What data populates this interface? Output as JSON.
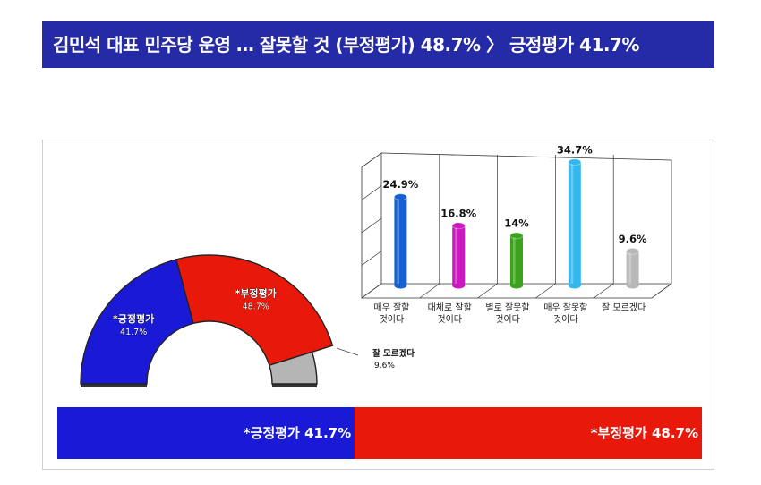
{
  "header": {
    "title": "김민석 대표 민주당 운영 … 잘못할 것 (부정평가) 48.7% 〉 긍정평가 41.7%"
  },
  "colors": {
    "banner": "#252aa6",
    "positive": "#1a1ad6",
    "negative": "#e8190b",
    "unknown": "#b5b5b5"
  },
  "chart_data": [
    {
      "type": "pie",
      "subtype": "semicircle-donut",
      "slices": [
        {
          "name": "*긍정평가",
          "value": 41.7,
          "label": "41.7%",
          "color": "#1a1ad6"
        },
        {
          "name": "*부정평가",
          "value": 48.7,
          "label": "48.7%",
          "color": "#e8190b"
        },
        {
          "name": "잘 모르겠다",
          "value": 9.6,
          "label": "9.6%",
          "color": "#b5b5b5"
        }
      ]
    },
    {
      "type": "bar",
      "subtype": "3d-cylinder",
      "categories": [
        "매우 잘할 것이다",
        "대체로 잘할 것이다",
        "별로 잘못할 것이다",
        "매우 잘못할 것이다",
        "잘 모르겠다"
      ],
      "category_lines": [
        [
          "매우 잘할",
          "것이다"
        ],
        [
          "대체로 잘할",
          "것이다"
        ],
        [
          "별로 잘못할",
          "것이다"
        ],
        [
          "매우 잘못할",
          "것이다"
        ],
        [
          "잘 모르겠다"
        ]
      ],
      "values": [
        24.9,
        16.8,
        14,
        34.7,
        9.6
      ],
      "labels": [
        "24.9%",
        "16.8%",
        "14%",
        "34.7%",
        "9.6%"
      ],
      "colors": [
        "#1660d0",
        "#cc18c0",
        "#3aa21c",
        "#32b8ee",
        "#b8b8b8"
      ],
      "grid": true
    },
    {
      "type": "bar",
      "subtype": "stacked-horizontal",
      "segments": [
        {
          "name": "*긍정평가",
          "value": 41.7,
          "label": "*긍정평가 41.7%",
          "color": "#1a1ad6"
        },
        {
          "name": "*부정평가",
          "value": 48.7,
          "label": "*부정평가 48.7%",
          "color": "#e8190b"
        }
      ]
    }
  ]
}
